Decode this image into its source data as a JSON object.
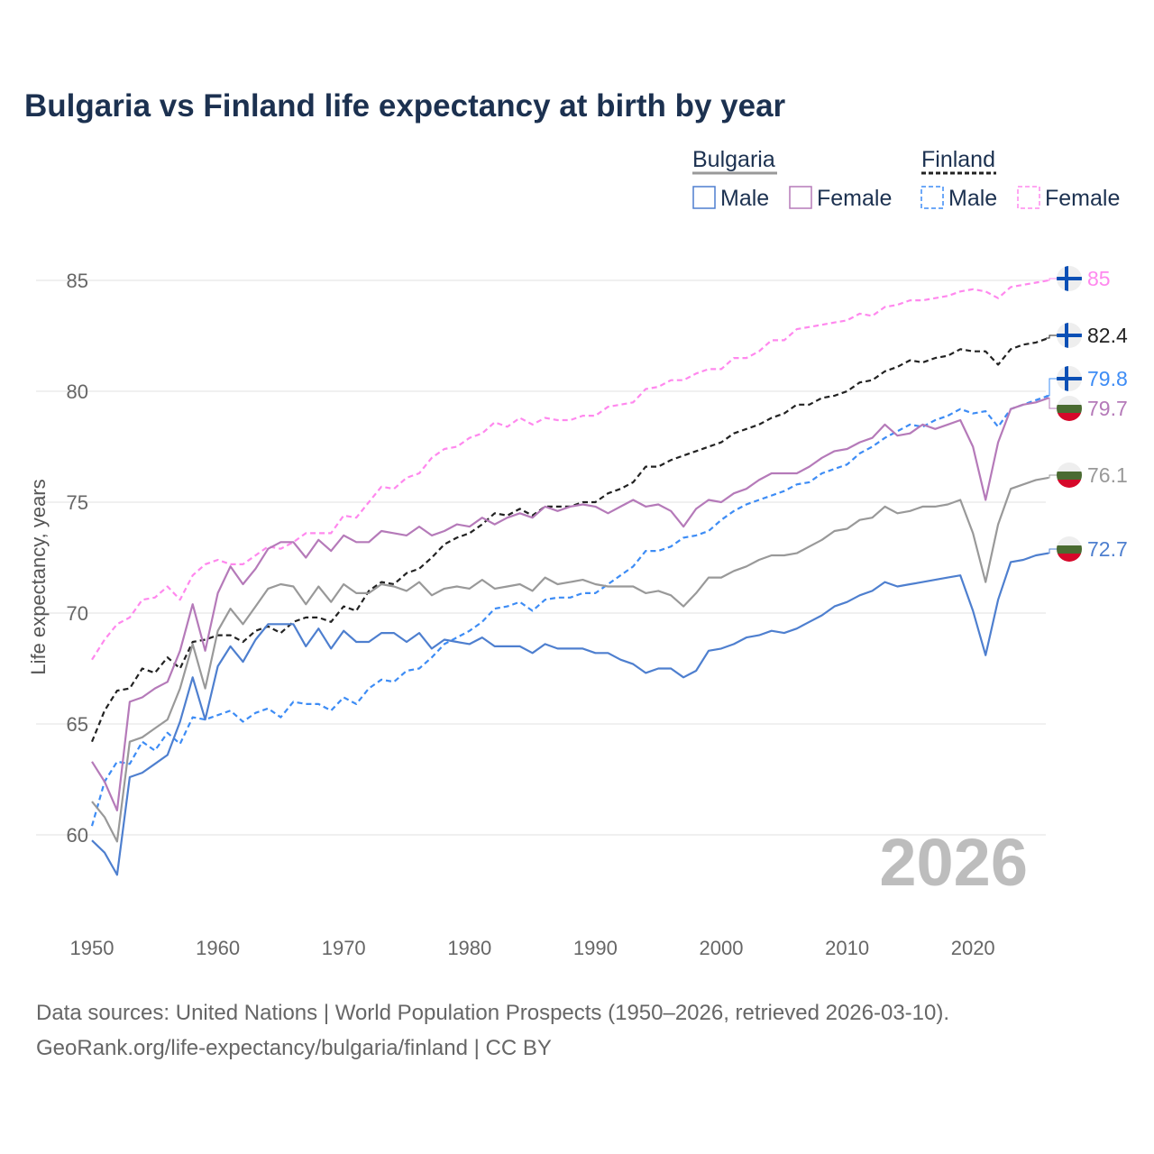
{
  "chart_data": {
    "type": "line",
    "title": "Bulgaria vs Finland life expectancy at birth by year",
    "xlabel": "",
    "ylabel": "Life expectancy, years",
    "xlim": [
      1950,
      2026
    ],
    "ylim": [
      57.5,
      86
    ],
    "x_ticks": [
      1950,
      1960,
      1970,
      1980,
      1990,
      2000,
      2010,
      2020
    ],
    "y_ticks": [
      60,
      65,
      70,
      75,
      80,
      85
    ],
    "grid": true,
    "watermark": "2026",
    "legend": {
      "placement": "top-right",
      "groups": [
        {
          "name": "Bulgaria",
          "items": [
            "Male",
            "Female"
          ]
        },
        {
          "name": "Finland",
          "items": [
            "Male",
            "Female"
          ]
        }
      ]
    },
    "series": [
      {
        "name": "Finland Female",
        "country": "Finland",
        "color": "#ff88ee",
        "dashed": true,
        "end_label": "85",
        "values": [
          67.9,
          68.8,
          69.5,
          69.8,
          70.6,
          70.7,
          71.2,
          70.6,
          71.7,
          72.2,
          72.4,
          72.2,
          72.2,
          72.6,
          73.0,
          72.9,
          73.2,
          73.6,
          73.6,
          73.6,
          74.4,
          74.3,
          75.0,
          75.7,
          75.6,
          76.1,
          76.3,
          77.0,
          77.4,
          77.5,
          77.9,
          78.1,
          78.6,
          78.4,
          78.8,
          78.5,
          78.8,
          78.7,
          78.7,
          78.9,
          78.9,
          79.3,
          79.4,
          79.5,
          80.1,
          80.2,
          80.5,
          80.5,
          80.8,
          81.0,
          81.0,
          81.5,
          81.5,
          81.8,
          82.3,
          82.3,
          82.8,
          82.9,
          83.0,
          83.1,
          83.2,
          83.5,
          83.4,
          83.8,
          83.9,
          84.1,
          84.1,
          84.2,
          84.3,
          84.5,
          84.6,
          84.5,
          84.2,
          84.7,
          84.8,
          84.9,
          85.0
        ]
      },
      {
        "name": "Finland",
        "country": "Finland",
        "color": "#222222",
        "dashed": true,
        "end_label": "82.4",
        "values": [
          64.2,
          65.6,
          66.5,
          66.6,
          67.5,
          67.3,
          68.0,
          67.5,
          68.7,
          68.8,
          69.0,
          69.0,
          68.7,
          69.2,
          69.4,
          69.1,
          69.6,
          69.8,
          69.8,
          69.6,
          70.3,
          70.1,
          71.0,
          71.4,
          71.3,
          71.8,
          72.0,
          72.5,
          73.1,
          73.4,
          73.6,
          74.0,
          74.5,
          74.4,
          74.7,
          74.4,
          74.8,
          74.8,
          74.8,
          75.0,
          75.0,
          75.4,
          75.6,
          75.9,
          76.6,
          76.6,
          76.9,
          77.1,
          77.3,
          77.5,
          77.7,
          78.1,
          78.3,
          78.5,
          78.8,
          79.0,
          79.4,
          79.4,
          79.7,
          79.8,
          80.0,
          80.4,
          80.5,
          80.9,
          81.1,
          81.4,
          81.3,
          81.5,
          81.6,
          81.9,
          81.8,
          81.8,
          81.2,
          81.9,
          82.1,
          82.2,
          82.4
        ]
      },
      {
        "name": "Finland Male",
        "country": "Finland",
        "color": "#3d8cf5",
        "dashed": true,
        "end_label": "79.8",
        "values": [
          60.4,
          62.4,
          63.3,
          63.2,
          64.2,
          63.8,
          64.6,
          64.1,
          65.3,
          65.2,
          65.4,
          65.6,
          65.1,
          65.5,
          65.7,
          65.3,
          66.0,
          65.9,
          65.9,
          65.6,
          66.2,
          65.9,
          66.6,
          67.0,
          66.9,
          67.4,
          67.5,
          68.0,
          68.6,
          68.9,
          69.2,
          69.6,
          70.2,
          70.3,
          70.5,
          70.1,
          70.6,
          70.7,
          70.7,
          70.9,
          70.9,
          71.3,
          71.7,
          72.1,
          72.8,
          72.8,
          73.0,
          73.4,
          73.5,
          73.7,
          74.2,
          74.6,
          74.9,
          75.1,
          75.3,
          75.5,
          75.8,
          75.9,
          76.3,
          76.5,
          76.7,
          77.2,
          77.5,
          77.9,
          78.2,
          78.5,
          78.4,
          78.7,
          78.9,
          79.2,
          79.0,
          79.1,
          78.4,
          79.2,
          79.4,
          79.6,
          79.8
        ]
      },
      {
        "name": "Bulgaria Female",
        "country": "Bulgaria",
        "color": "#b57ab9",
        "dashed": false,
        "end_label": "79.7",
        "values": [
          63.3,
          62.4,
          61.1,
          66.0,
          66.2,
          66.6,
          66.9,
          68.3,
          70.4,
          68.3,
          70.9,
          72.1,
          71.3,
          72.0,
          72.9,
          73.2,
          73.2,
          72.5,
          73.3,
          72.8,
          73.5,
          73.2,
          73.2,
          73.7,
          73.6,
          73.5,
          73.9,
          73.5,
          73.7,
          74.0,
          73.9,
          74.3,
          74.0,
          74.3,
          74.5,
          74.3,
          74.8,
          74.6,
          74.8,
          74.9,
          74.8,
          74.5,
          74.8,
          75.1,
          74.8,
          74.9,
          74.6,
          73.9,
          74.7,
          75.1,
          75.0,
          75.4,
          75.6,
          76.0,
          76.3,
          76.3,
          76.3,
          76.6,
          77.0,
          77.3,
          77.4,
          77.7,
          77.9,
          78.5,
          78.0,
          78.1,
          78.5,
          78.3,
          78.5,
          78.7,
          77.5,
          75.1,
          77.7,
          79.2,
          79.4,
          79.5,
          79.7
        ]
      },
      {
        "name": "Bulgaria",
        "country": "Bulgaria",
        "color": "#999999",
        "dashed": false,
        "end_label": "76.1",
        "values": [
          61.5,
          60.8,
          59.7,
          64.2,
          64.4,
          64.8,
          65.2,
          66.6,
          68.6,
          66.6,
          69.2,
          70.2,
          69.5,
          70.3,
          71.1,
          71.3,
          71.2,
          70.4,
          71.2,
          70.5,
          71.3,
          70.9,
          70.9,
          71.3,
          71.2,
          71.0,
          71.4,
          70.8,
          71.1,
          71.2,
          71.1,
          71.5,
          71.1,
          71.2,
          71.3,
          71.0,
          71.6,
          71.3,
          71.4,
          71.5,
          71.3,
          71.2,
          71.2,
          71.2,
          70.9,
          71.0,
          70.8,
          70.3,
          70.9,
          71.6,
          71.6,
          71.9,
          72.1,
          72.4,
          72.6,
          72.6,
          72.7,
          73.0,
          73.3,
          73.7,
          73.8,
          74.2,
          74.3,
          74.8,
          74.5,
          74.6,
          74.8,
          74.8,
          74.9,
          75.1,
          73.6,
          71.4,
          74.0,
          75.6,
          75.8,
          76.0,
          76.1
        ]
      },
      {
        "name": "Bulgaria Male",
        "country": "Bulgaria",
        "color": "#4e7fcf",
        "dashed": false,
        "end_label": "72.7",
        "values": [
          59.75,
          59.2,
          58.2,
          62.6,
          62.8,
          63.2,
          63.6,
          65.1,
          67.1,
          65.2,
          67.6,
          68.5,
          67.8,
          68.8,
          69.5,
          69.5,
          69.5,
          68.5,
          69.3,
          68.4,
          69.2,
          68.7,
          68.7,
          69.1,
          69.1,
          68.7,
          69.1,
          68.4,
          68.8,
          68.7,
          68.6,
          68.9,
          68.5,
          68.5,
          68.5,
          68.2,
          68.6,
          68.4,
          68.4,
          68.4,
          68.2,
          68.2,
          67.9,
          67.7,
          67.3,
          67.5,
          67.5,
          67.1,
          67.4,
          68.3,
          68.4,
          68.6,
          68.9,
          69.0,
          69.2,
          69.1,
          69.3,
          69.6,
          69.9,
          70.3,
          70.5,
          70.8,
          71.0,
          71.4,
          71.2,
          71.3,
          71.4,
          71.5,
          71.6,
          71.7,
          70.1,
          68.1,
          70.6,
          72.3,
          72.4,
          72.6,
          72.7
        ]
      }
    ],
    "source_lines": [
      "Data sources: United Nations | World Population Prospects (1950–2026, retrieved 2026-03-10).",
      "GeoRank.org/life-expectancy/bulgaria/finland | CC BY"
    ]
  }
}
